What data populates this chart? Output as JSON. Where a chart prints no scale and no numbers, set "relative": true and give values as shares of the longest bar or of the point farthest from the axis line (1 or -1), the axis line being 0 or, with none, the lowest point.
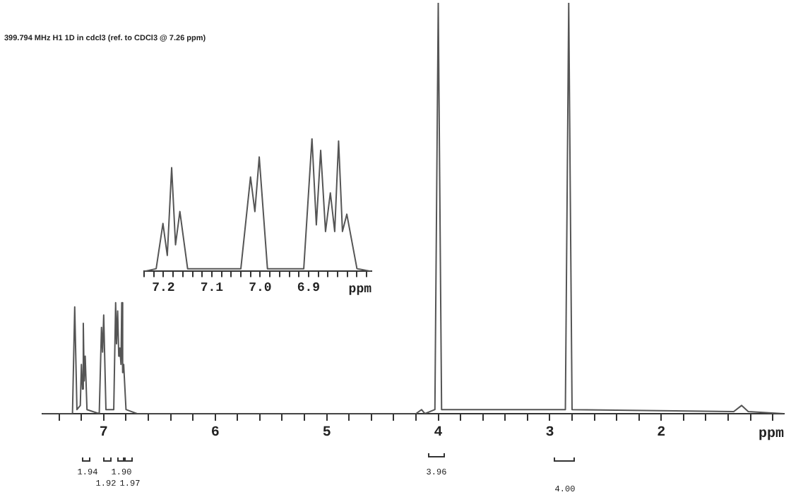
{
  "chart_data": [
    {
      "type": "line",
      "title": "399.794 MHz H1 1D in cdcl3 (ref. to CDCl3 @ 7.26 ppm)",
      "xlabel": "ppm",
      "relative": true,
      "marker": "none",
      "xlim": [
        7.55,
        0.9
      ],
      "xticks": [
        {
          "value": 7.4,
          "label": null
        },
        {
          "value": 7.2,
          "label": null
        },
        7,
        {
          "value": 6.8,
          "label": null
        },
        {
          "value": 6.6,
          "label": null
        },
        {
          "value": 6.4,
          "label": null
        },
        {
          "value": 6.2,
          "label": null
        },
        6,
        {
          "value": 5.8,
          "label": null
        },
        {
          "value": 5.6,
          "label": null
        },
        {
          "value": 5.4,
          "label": null
        },
        {
          "value": 5.2,
          "label": null
        },
        5,
        {
          "value": 4.8,
          "label": null
        },
        {
          "value": 4.6,
          "label": null
        },
        {
          "value": 4.4,
          "label": null
        },
        {
          "value": 4.2,
          "label": null
        },
        4,
        {
          "value": 3.8,
          "label": null
        },
        {
          "value": 3.6,
          "label": null
        },
        {
          "value": 3.4,
          "label": null
        },
        {
          "value": 3.2,
          "label": null
        },
        3,
        {
          "value": 2.8,
          "label": null
        },
        {
          "value": 2.6,
          "label": null
        },
        {
          "value": 2.4,
          "label": null
        },
        {
          "value": 2.2,
          "label": null
        },
        2,
        {
          "value": 1.8,
          "label": null
        },
        {
          "value": 1.6,
          "label": null
        },
        {
          "value": 1.4,
          "label": null
        },
        {
          "value": 1.2,
          "label": null
        },
        {
          "value": 1.0,
          "label": null
        }
      ],
      "series": [
        {
          "color": "#555555",
          "x": [
            7.55,
            7.28,
            7.26,
            7.24,
            7.21,
            7.2,
            7.19,
            7.183,
            7.175,
            7.166,
            7.15,
            7.04,
            7.02,
            7.01,
            7.0,
            6.98,
            6.91,
            6.893,
            6.885,
            6.875,
            6.865,
            6.855,
            6.845,
            6.838,
            6.83,
            6.821,
            6.8,
            6.7,
            4.2,
            4.15,
            4.12,
            4.03,
            4.0,
            3.97,
            3.05,
            2.86,
            2.83,
            2.8,
            1.35,
            1.28,
            1.22,
            0.9
          ],
          "values": [
            0,
            0,
            0.26,
            0.01,
            0.02,
            0.12,
            0.06,
            0.22,
            0.08,
            0.14,
            0.01,
            0,
            0.21,
            0.15,
            0.24,
            0.01,
            0.01,
            0.27,
            0.17,
            0.25,
            0.14,
            0.16,
            0.12,
            0.27,
            0.1,
            0.12,
            0.01,
            0,
            0,
            0.01,
            0,
            0.01,
            1,
            0.01,
            0.01,
            0.01,
            1,
            0.01,
            0.005,
            0.02,
            0.005,
            0
          ]
        }
      ],
      "annotations": [
        "1.94",
        "1.92",
        "1.90",
        "1.97",
        "3.96",
        "4.00"
      ]
    },
    {
      "type": "line",
      "xlabel": "ppm",
      "relative": true,
      "marker": "none",
      "xlim": [
        7.24,
        6.77
      ],
      "xticks": [
        {
          "value": 7.24,
          "label": null
        },
        {
          "value": 7.22,
          "label": null
        },
        {
          "value": 7.2,
          "label": "7.2"
        },
        {
          "value": 7.18,
          "label": null
        },
        {
          "value": 7.16,
          "label": null
        },
        {
          "value": 7.14,
          "label": null
        },
        {
          "value": 7.12,
          "label": null
        },
        {
          "value": 7.1,
          "label": "7.1"
        },
        {
          "value": 7.08,
          "label": null
        },
        {
          "value": 7.06,
          "label": null
        },
        {
          "value": 7.04,
          "label": null
        },
        {
          "value": 7.02,
          "label": null
        },
        {
          "value": 7.0,
          "label": "7.0"
        },
        {
          "value": 6.98,
          "label": null
        },
        {
          "value": 6.96,
          "label": null
        },
        {
          "value": 6.94,
          "label": null
        },
        {
          "value": 6.92,
          "label": null
        },
        {
          "value": 6.9,
          "label": "6.9"
        },
        {
          "value": 6.88,
          "label": null
        },
        {
          "value": 6.86,
          "label": null
        },
        {
          "value": 6.84,
          "label": null
        },
        {
          "value": 6.82,
          "label": null
        },
        {
          "value": 6.8,
          "label": null
        },
        {
          "value": 6.78,
          "label": null
        }
      ],
      "series": [
        {
          "color": "#555555",
          "x": [
            7.24,
            7.215,
            7.201,
            7.192,
            7.183,
            7.175,
            7.166,
            7.15,
            7.04,
            7.02,
            7.011,
            7.002,
            6.985,
            6.91,
            6.893,
            6.884,
            6.875,
            6.865,
            6.855,
            6.846,
            6.838,
            6.83,
            6.821,
            6.8,
            6.77
          ],
          "values": [
            0,
            0.02,
            0.36,
            0.12,
            0.78,
            0.2,
            0.45,
            0.02,
            0.02,
            0.71,
            0.45,
            0.86,
            0.02,
            0.02,
            1,
            0.35,
            0.91,
            0.3,
            0.59,
            0.3,
            0.98,
            0.3,
            0.43,
            0.02,
            0
          ]
        }
      ]
    }
  ]
}
